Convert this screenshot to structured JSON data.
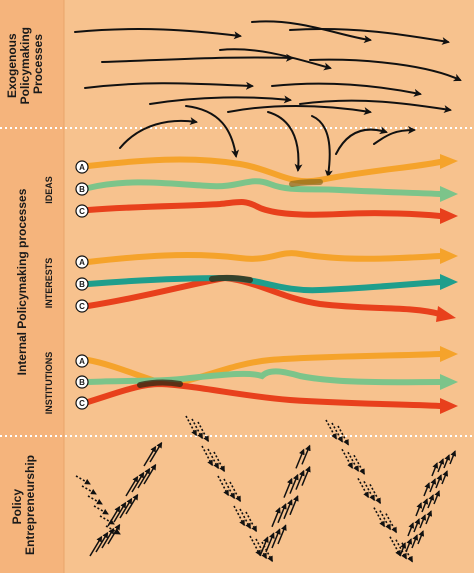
{
  "sections": {
    "exogenous": {
      "label_line1": "Exogenous",
      "label_line2": "Policymaking",
      "label_line3": "Processes"
    },
    "internal": {
      "label": "Internal Policymaking processes"
    },
    "entrepreneurship": {
      "label_line1": "Policy",
      "label_line2": "Entrepreneurship"
    }
  },
  "groups": {
    "ideas": {
      "label": "IDEAS"
    },
    "interests": {
      "label": "INTERESTS"
    },
    "institutions": {
      "label": "INSTITUTIONS"
    }
  },
  "markers": {
    "a": "A",
    "b": "B",
    "c": "C"
  },
  "colors": {
    "background": "#f7c28e",
    "band": "#f5b47c",
    "divider": "#ffffff",
    "orange": "#f5a32b",
    "light_green": "#7cc48a",
    "red": "#e8401c",
    "teal": "#1f9e8c",
    "arrow": "#111111"
  }
}
